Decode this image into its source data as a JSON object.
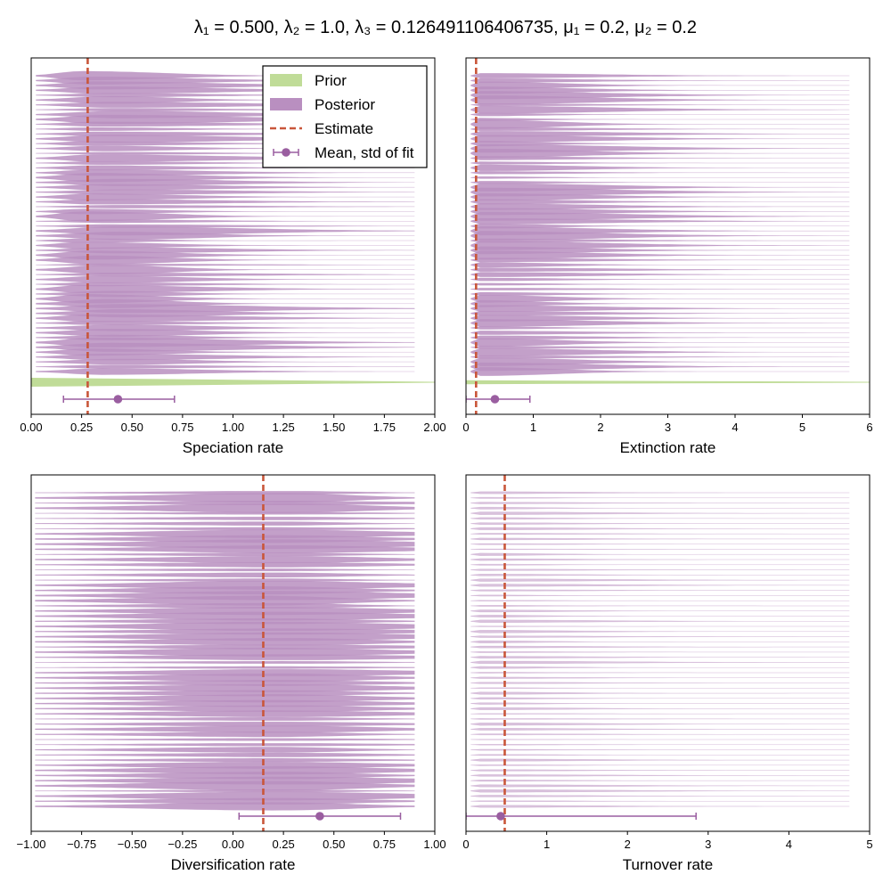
{
  "figure": {
    "title": "λ₁ = 0.500, λ₂ = 1.0, λ₃ = 0.126491106406735, μ₁ = 0.2, μ₂ = 0.2"
  },
  "colors": {
    "prior": "#c0dc98",
    "posterior": "#b98fc0",
    "estimate": "#c9563a",
    "fit": "#9a5ea0"
  },
  "legend": {
    "placement": "upper-right of first panel",
    "entries": [
      "Prior",
      "Posterior",
      "Estimate",
      "Mean, std of fit"
    ]
  },
  "chart_data": [
    {
      "type": "violin",
      "xlabel": "Speciation rate",
      "xlim": [
        0,
        2
      ],
      "xticks": [
        "0.00",
        "0.25",
        "0.50",
        "0.75",
        "1.00",
        "1.25",
        "1.50",
        "1.75",
        "2.00"
      ],
      "estimate": 0.28,
      "fit_mean": 0.43,
      "fit_std_range": [
        0.16,
        0.71
      ],
      "prior": true,
      "posterior_mode": 0.33
    },
    {
      "type": "violin",
      "xlabel": "Extinction rate",
      "xlim": [
        0,
        6
      ],
      "xticks": [
        "0",
        "1",
        "2",
        "3",
        "4",
        "5",
        "6"
      ],
      "estimate": 0.15,
      "fit_mean": 0.43,
      "fit_std_range": [
        0.0,
        0.95
      ],
      "prior": true,
      "posterior_mode": 0.15
    },
    {
      "type": "violin",
      "xlabel": "Diversification rate",
      "xlim": [
        -1,
        1
      ],
      "xticks": [
        "−1.00",
        "−0.75",
        "−0.50",
        "−0.25",
        "0.00",
        "0.25",
        "0.50",
        "0.75",
        "1.00"
      ],
      "estimate": 0.15,
      "fit_mean": 0.43,
      "fit_std_range": [
        0.03,
        0.83
      ],
      "prior": false,
      "posterior_mode": 0.2
    },
    {
      "type": "violin",
      "xlabel": "Turnover rate",
      "xlim": [
        0,
        5
      ],
      "xticks": [
        "0",
        "1",
        "2",
        "3",
        "4",
        "5"
      ],
      "estimate": 0.48,
      "fit_mean": 0.43,
      "fit_std_range": [
        0.0,
        2.85
      ],
      "prior": false,
      "posterior_mode": 0.1
    }
  ]
}
